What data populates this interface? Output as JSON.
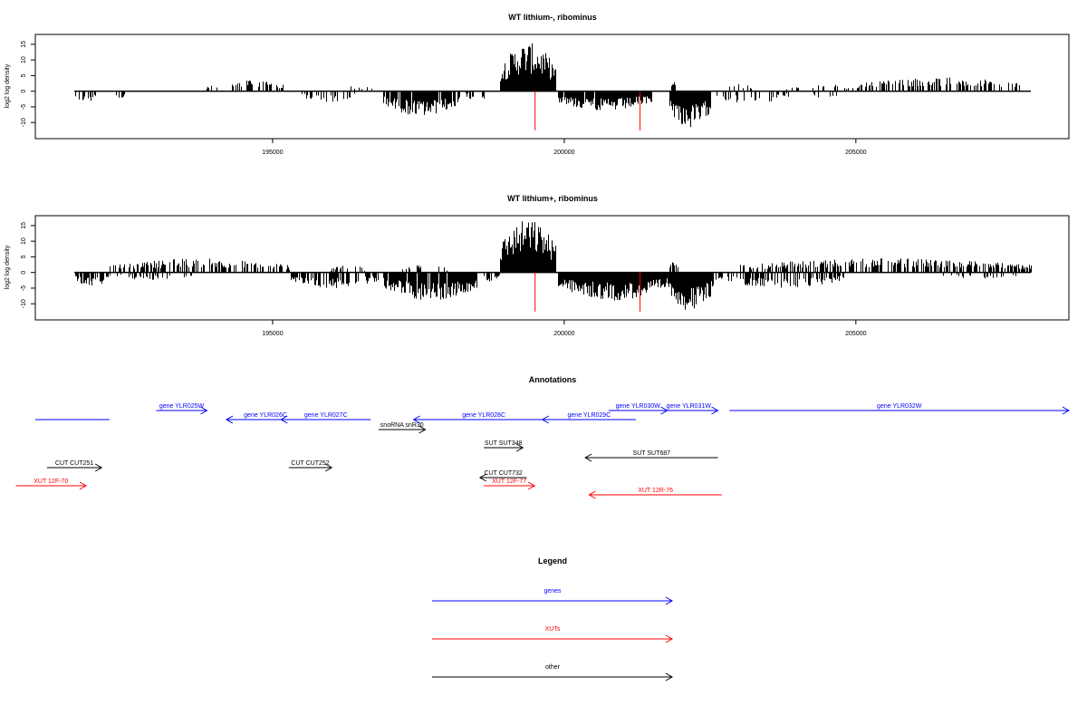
{
  "chart_data": [
    {
      "type": "bar",
      "title": "WT lithium-, ribominus",
      "ylabel": "log2 log density",
      "xlim": [
        191000,
        208500
      ],
      "ylim": [
        -14,
        17
      ],
      "xticks": [
        195000,
        200000,
        205000
      ],
      "yticks": [
        -10,
        -5,
        0,
        5,
        10,
        15
      ],
      "xticklabels": [
        "195000",
        "200000",
        "205000"
      ],
      "yticklabels": [
        "-10",
        "-5",
        "0",
        "5",
        "10",
        "15"
      ],
      "grid": false,
      "markers": [
        199500,
        201300
      ],
      "segments": [
        {
          "start": 191600,
          "end": 192000,
          "strand": "-",
          "amp": 3.5,
          "density": 0.45
        },
        {
          "start": 192300,
          "end": 192450,
          "strand": "-",
          "amp": 3,
          "density": 0.4
        },
        {
          "start": 193800,
          "end": 194100,
          "strand": "+",
          "amp": 2,
          "density": 0.25
        },
        {
          "start": 194300,
          "end": 195200,
          "strand": "+",
          "amp": 4,
          "density": 0.5
        },
        {
          "start": 195500,
          "end": 196400,
          "strand": "-",
          "amp": 3.5,
          "density": 0.4
        },
        {
          "start": 196200,
          "end": 196700,
          "strand": "+",
          "amp": 2,
          "density": 0.2
        },
        {
          "start": 196900,
          "end": 198200,
          "strand": "-",
          "amp": 8,
          "density": 0.9
        },
        {
          "start": 198300,
          "end": 198700,
          "strand": "-",
          "amp": 3,
          "density": 0.3
        },
        {
          "start": 198900,
          "end": 199850,
          "strand": "+",
          "amp": 15.5,
          "density": 1.0
        },
        {
          "start": 199900,
          "end": 201500,
          "strand": "-",
          "amp": 6.5,
          "density": 0.95
        },
        {
          "start": 201800,
          "end": 202500,
          "strand": "-",
          "amp": 12,
          "density": 1.0
        },
        {
          "start": 201800,
          "end": 201950,
          "strand": "+",
          "amp": 3,
          "density": 0.6
        },
        {
          "start": 202600,
          "end": 203800,
          "strand": "-",
          "amp": 4,
          "density": 0.35
        },
        {
          "start": 202800,
          "end": 203200,
          "strand": "+",
          "amp": 2.5,
          "density": 0.2
        },
        {
          "start": 203800,
          "end": 205000,
          "strand": "+",
          "amp": 2.5,
          "density": 0.25
        },
        {
          "start": 205000,
          "end": 207800,
          "strand": "+",
          "amp": 4.5,
          "density": 0.45
        },
        {
          "start": 203500,
          "end": 204800,
          "strand": "-",
          "amp": 2.5,
          "density": 0.2
        }
      ]
    },
    {
      "type": "bar",
      "title": "WT lithium+, ribominus",
      "ylabel": "log2 log density",
      "xlim": [
        191000,
        208500
      ],
      "ylim": [
        -14,
        17
      ],
      "xticks": [
        195000,
        200000,
        205000
      ],
      "yticks": [
        -10,
        -5,
        0,
        5,
        10,
        15
      ],
      "xticklabels": [
        "195000",
        "200000",
        "205000"
      ],
      "yticklabels": [
        "-10",
        "-5",
        "0",
        "5",
        "10",
        "15"
      ],
      "grid": false,
      "markers": [
        199500,
        201300
      ],
      "segments": [
        {
          "start": 191600,
          "end": 192200,
          "strand": "-",
          "amp": 4.5,
          "density": 0.7
        },
        {
          "start": 192200,
          "end": 195300,
          "strand": "+",
          "amp": 4.5,
          "density": 0.55
        },
        {
          "start": 192300,
          "end": 193600,
          "strand": "-",
          "amp": 2.5,
          "density": 0.3
        },
        {
          "start": 195300,
          "end": 196800,
          "strand": "-",
          "amp": 5,
          "density": 0.6
        },
        {
          "start": 196000,
          "end": 196600,
          "strand": "+",
          "amp": 2.5,
          "density": 0.25
        },
        {
          "start": 196900,
          "end": 198500,
          "strand": "-",
          "amp": 9,
          "density": 0.95
        },
        {
          "start": 197200,
          "end": 198000,
          "strand": "+",
          "amp": 2.5,
          "density": 0.3
        },
        {
          "start": 198600,
          "end": 198900,
          "strand": "-",
          "amp": 3,
          "density": 0.4
        },
        {
          "start": 198900,
          "end": 199850,
          "strand": "+",
          "amp": 17,
          "density": 1.0
        },
        {
          "start": 199900,
          "end": 201800,
          "strand": "-",
          "amp": 9,
          "density": 1.0
        },
        {
          "start": 201800,
          "end": 202550,
          "strand": "-",
          "amp": 12.5,
          "density": 1.0
        },
        {
          "start": 201800,
          "end": 201950,
          "strand": "+",
          "amp": 3.5,
          "density": 0.6
        },
        {
          "start": 202600,
          "end": 204800,
          "strand": "-",
          "amp": 5,
          "density": 0.5
        },
        {
          "start": 203000,
          "end": 208000,
          "strand": "+",
          "amp": 4.5,
          "density": 0.55
        },
        {
          "start": 206500,
          "end": 207800,
          "strand": "-",
          "amp": 2,
          "density": 0.2
        }
      ]
    }
  ],
  "annotations": {
    "title": "Annotations",
    "colors": {
      "gene": "#0000ff",
      "xut": "#ff0000",
      "other": "#000000"
    },
    "features": [
      {
        "label": "",
        "kind": "gene",
        "x1": 191000,
        "x2": 192900,
        "row": 1,
        "dir": "none"
      },
      {
        "label": "gene YLR025W",
        "kind": "gene",
        "x1": 194100,
        "x2": 195400,
        "row": 0,
        "dir": "right"
      },
      {
        "label": "gene YLR026C",
        "kind": "gene",
        "x1": 195900,
        "x2": 197900,
        "row": 1,
        "dir": "left"
      },
      {
        "label": "gene YLR027C",
        "kind": "gene",
        "x1": 197300,
        "x2": 199600,
        "row": 1,
        "dir": "left"
      },
      {
        "label": "snoRNA snR30",
        "kind": "other",
        "x1": 199800,
        "x2": 201000,
        "row": 2,
        "dir": "right"
      },
      {
        "label": "gene YLR028C",
        "kind": "gene",
        "x1": 200700,
        "x2": 204300,
        "row": 1,
        "dir": "left"
      },
      {
        "label": "gene YLR029C",
        "kind": "gene",
        "x1": 204000,
        "x2": 206400,
        "row": 1,
        "dir": "left"
      },
      {
        "label": "gene YLR030W",
        "kind": "gene",
        "x1": 205700,
        "x2": 207200,
        "row": 0,
        "dir": "right"
      },
      {
        "label": "gene YLR031W",
        "kind": "gene",
        "x1": 207000,
        "x2": 208500,
        "row": 0,
        "dir": "right"
      },
      {
        "label": "gene YLR032W",
        "kind": "gene",
        "x1": 208800,
        "x2": 217500,
        "row": 0,
        "dir": "right"
      },
      {
        "label": "SUT SUT348",
        "kind": "other",
        "x1": 202500,
        "x2": 203500,
        "row": 3,
        "dir": "right"
      },
      {
        "label": "SUT SUT687",
        "kind": "other",
        "x1": 205100,
        "x2": 208500,
        "row": 4,
        "dir": "left"
      },
      {
        "label": "CUT CUT251",
        "kind": "other",
        "x1": 191300,
        "x2": 192700,
        "row": 5,
        "dir": "right"
      },
      {
        "label": "CUT CUT252",
        "kind": "other",
        "x1": 197500,
        "x2": 198600,
        "row": 5,
        "dir": "right"
      },
      {
        "label": "CUT CUT732",
        "kind": "other",
        "x1": 202400,
        "x2": 203600,
        "row": 6,
        "dir": "left"
      },
      {
        "label": "XUT 12F-70",
        "kind": "xut",
        "x1": 190500,
        "x2": 192300,
        "row": 7,
        "dir": "right"
      },
      {
        "label": "XUT 12F-77",
        "kind": "xut",
        "x1": 202500,
        "x2": 203800,
        "row": 7,
        "dir": "right"
      },
      {
        "label": "XUT 12R-76",
        "kind": "xut",
        "x1": 205200,
        "x2": 208600,
        "row": 8,
        "dir": "left"
      }
    ]
  },
  "legend": {
    "title": "Legend",
    "items": [
      {
        "label": "genes",
        "kind": "gene"
      },
      {
        "label": "XUTs",
        "kind": "xut"
      },
      {
        "label": "other",
        "kind": "other"
      }
    ]
  }
}
